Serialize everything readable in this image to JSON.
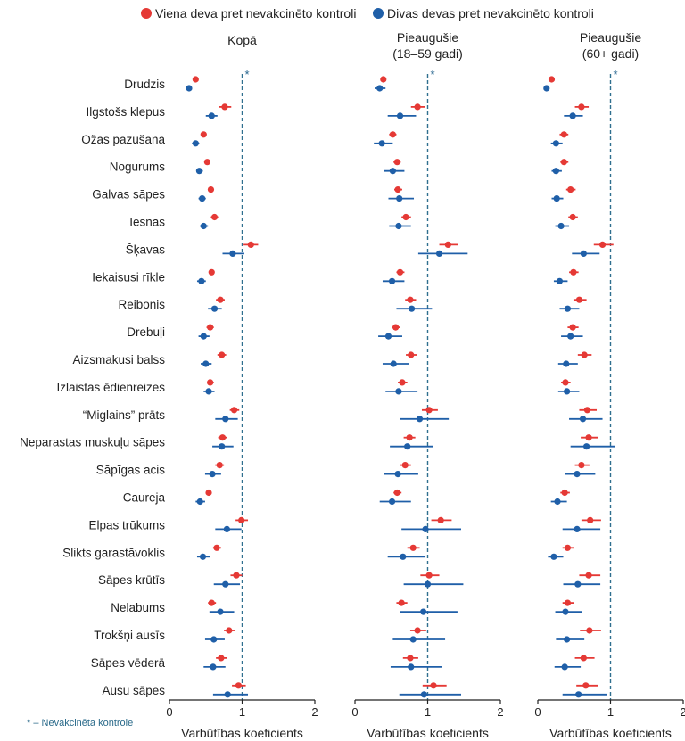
{
  "legend": {
    "red_label": "Viena deva pret nevakcinēto kontroli",
    "blue_label": "Divas devas pret nevakcinēto kontroli"
  },
  "footnote": "* – Nevakcinēta kontrole",
  "colors": {
    "red": "#e53935",
    "blue": "#1f5fa8",
    "ref_line": "#2f6f8f",
    "axis": "#222222"
  },
  "chart_data": {
    "type": "forest",
    "xlim": [
      0,
      2
    ],
    "xticks": [
      "0",
      "1",
      "2"
    ],
    "reference_value": 1,
    "reference_marker": "*",
    "xlabel": "Varbūtības koeficients",
    "categories": [
      "Drudzis",
      "Ilgstošs klepus",
      "Ožas pazušana",
      "Nogurums",
      "Galvas sāpes",
      "Iesnas",
      "Šķavas",
      "Iekaisusi rīkle",
      "Reibonis",
      "Drebuļi",
      "Aizsmakusi balss",
      "Izlaistas ēdienreizes",
      "“Miglains” prāts",
      "Neparastas muskuļu sāpes",
      "Sāpīgas acis",
      "Caureja",
      "Elpas trūkums",
      "Slikts garastāvoklis",
      "Sāpes krūtīs",
      "Nelabums",
      "Trokšņi ausīs",
      "Sāpes vēderā",
      "Ausu sāpes"
    ],
    "panels": [
      {
        "title": "Kopā",
        "one_dose": [
          [
            0.36,
            0.33,
            0.38
          ],
          [
            0.76,
            0.68,
            0.85
          ],
          [
            0.47,
            0.43,
            0.51
          ],
          [
            0.52,
            0.48,
            0.55
          ],
          [
            0.57,
            0.53,
            0.61
          ],
          [
            0.62,
            0.57,
            0.67
          ],
          [
            1.12,
            1.02,
            1.22
          ],
          [
            0.58,
            0.54,
            0.62
          ],
          [
            0.7,
            0.64,
            0.76
          ],
          [
            0.56,
            0.51,
            0.61
          ],
          [
            0.72,
            0.66,
            0.78
          ],
          [
            0.56,
            0.52,
            0.61
          ],
          [
            0.89,
            0.83,
            0.96
          ],
          [
            0.73,
            0.67,
            0.79
          ],
          [
            0.69,
            0.63,
            0.75
          ],
          [
            0.54,
            0.5,
            0.58
          ],
          [
            0.99,
            0.91,
            1.08
          ],
          [
            0.65,
            0.6,
            0.71
          ],
          [
            0.92,
            0.84,
            1.0
          ],
          [
            0.58,
            0.53,
            0.64
          ],
          [
            0.82,
            0.75,
            0.9
          ],
          [
            0.71,
            0.64,
            0.79
          ],
          [
            0.95,
            0.86,
            1.05
          ]
        ],
        "two_doses": [
          [
            0.27,
            0.24,
            0.3
          ],
          [
            0.58,
            0.5,
            0.66
          ],
          [
            0.36,
            0.31,
            0.41
          ],
          [
            0.41,
            0.37,
            0.46
          ],
          [
            0.45,
            0.4,
            0.5
          ],
          [
            0.47,
            0.42,
            0.53
          ],
          [
            0.87,
            0.73,
            1.03
          ],
          [
            0.44,
            0.38,
            0.5
          ],
          [
            0.62,
            0.53,
            0.72
          ],
          [
            0.47,
            0.4,
            0.55
          ],
          [
            0.5,
            0.43,
            0.58
          ],
          [
            0.54,
            0.47,
            0.62
          ],
          [
            0.77,
            0.63,
            0.94
          ],
          [
            0.72,
            0.59,
            0.88
          ],
          [
            0.59,
            0.49,
            0.71
          ],
          [
            0.42,
            0.36,
            0.49
          ],
          [
            0.79,
            0.63,
            0.99
          ],
          [
            0.46,
            0.38,
            0.56
          ],
          [
            0.77,
            0.61,
            0.97
          ],
          [
            0.7,
            0.55,
            0.89
          ],
          [
            0.61,
            0.49,
            0.76
          ],
          [
            0.6,
            0.47,
            0.77
          ],
          [
            0.8,
            0.6,
            1.08
          ]
        ]
      },
      {
        "title": "Pieaugušie\n(18–59 gadi)",
        "one_dose": [
          [
            0.39,
            0.36,
            0.43
          ],
          [
            0.86,
            0.77,
            0.96
          ],
          [
            0.52,
            0.47,
            0.57
          ],
          [
            0.58,
            0.53,
            0.63
          ],
          [
            0.59,
            0.54,
            0.65
          ],
          [
            0.7,
            0.64,
            0.77
          ],
          [
            1.28,
            1.16,
            1.42
          ],
          [
            0.62,
            0.57,
            0.68
          ],
          [
            0.76,
            0.69,
            0.84
          ],
          [
            0.56,
            0.51,
            0.62
          ],
          [
            0.77,
            0.7,
            0.85
          ],
          [
            0.65,
            0.59,
            0.72
          ],
          [
            1.02,
            0.92,
            1.14
          ],
          [
            0.75,
            0.67,
            0.83
          ],
          [
            0.69,
            0.62,
            0.77
          ],
          [
            0.58,
            0.53,
            0.64
          ],
          [
            1.18,
            1.05,
            1.33
          ],
          [
            0.8,
            0.72,
            0.89
          ],
          [
            1.02,
            0.9,
            1.16
          ],
          [
            0.64,
            0.57,
            0.72
          ],
          [
            0.86,
            0.76,
            0.98
          ],
          [
            0.76,
            0.66,
            0.87
          ],
          [
            1.08,
            0.93,
            1.26
          ]
        ],
        "two_doses": [
          [
            0.34,
            0.27,
            0.42
          ],
          [
            0.62,
            0.45,
            0.84
          ],
          [
            0.37,
            0.26,
            0.52
          ],
          [
            0.52,
            0.4,
            0.68
          ],
          [
            0.61,
            0.46,
            0.81
          ],
          [
            0.6,
            0.47,
            0.77
          ],
          [
            1.16,
            0.87,
            1.55
          ],
          [
            0.51,
            0.38,
            0.68
          ],
          [
            0.78,
            0.57,
            1.06
          ],
          [
            0.46,
            0.32,
            0.65
          ],
          [
            0.53,
            0.38,
            0.74
          ],
          [
            0.6,
            0.42,
            0.86
          ],
          [
            0.89,
            0.62,
            1.29
          ],
          [
            0.72,
            0.48,
            1.07
          ],
          [
            0.59,
            0.4,
            0.87
          ],
          [
            0.51,
            0.34,
            0.77
          ],
          [
            0.97,
            0.64,
            1.46
          ],
          [
            0.66,
            0.45,
            0.97
          ],
          [
            1.0,
            0.67,
            1.49
          ],
          [
            0.94,
            0.62,
            1.41
          ],
          [
            0.8,
            0.52,
            1.24
          ],
          [
            0.77,
            0.49,
            1.19
          ],
          [
            0.95,
            0.61,
            1.46
          ]
        ]
      },
      {
        "title": "Pieaugušie\n(60+ gadi)",
        "one_dose": [
          [
            0.19,
            0.16,
            0.22
          ],
          [
            0.6,
            0.51,
            0.7
          ],
          [
            0.36,
            0.3,
            0.42
          ],
          [
            0.36,
            0.31,
            0.42
          ],
          [
            0.45,
            0.39,
            0.52
          ],
          [
            0.48,
            0.42,
            0.55
          ],
          [
            0.89,
            0.77,
            1.04
          ],
          [
            0.49,
            0.43,
            0.56
          ],
          [
            0.57,
            0.49,
            0.67
          ],
          [
            0.48,
            0.41,
            0.56
          ],
          [
            0.64,
            0.55,
            0.74
          ],
          [
            0.38,
            0.32,
            0.45
          ],
          [
            0.68,
            0.57,
            0.81
          ],
          [
            0.7,
            0.59,
            0.83
          ],
          [
            0.6,
            0.51,
            0.71
          ],
          [
            0.37,
            0.31,
            0.44
          ],
          [
            0.72,
            0.6,
            0.87
          ],
          [
            0.41,
            0.34,
            0.5
          ],
          [
            0.7,
            0.57,
            0.86
          ],
          [
            0.41,
            0.34,
            0.5
          ],
          [
            0.71,
            0.58,
            0.87
          ],
          [
            0.63,
            0.51,
            0.78
          ],
          [
            0.66,
            0.53,
            0.83
          ]
        ],
        "two_doses": [
          [
            0.12,
            0.09,
            0.16
          ],
          [
            0.48,
            0.36,
            0.62
          ],
          [
            0.25,
            0.18,
            0.34
          ],
          [
            0.25,
            0.19,
            0.33
          ],
          [
            0.26,
            0.19,
            0.35
          ],
          [
            0.32,
            0.24,
            0.43
          ],
          [
            0.63,
            0.47,
            0.85
          ],
          [
            0.3,
            0.22,
            0.41
          ],
          [
            0.41,
            0.3,
            0.57
          ],
          [
            0.45,
            0.32,
            0.62
          ],
          [
            0.39,
            0.28,
            0.55
          ],
          [
            0.4,
            0.28,
            0.57
          ],
          [
            0.62,
            0.43,
            0.89
          ],
          [
            0.67,
            0.45,
            1.06
          ],
          [
            0.54,
            0.38,
            0.79
          ],
          [
            0.27,
            0.18,
            0.4
          ],
          [
            0.54,
            0.34,
            0.86
          ],
          [
            0.22,
            0.14,
            0.35
          ],
          [
            0.55,
            0.35,
            0.86
          ],
          [
            0.38,
            0.24,
            0.61
          ],
          [
            0.4,
            0.25,
            0.64
          ],
          [
            0.37,
            0.23,
            0.59
          ],
          [
            0.56,
            0.34,
            0.95
          ]
        ]
      }
    ]
  }
}
